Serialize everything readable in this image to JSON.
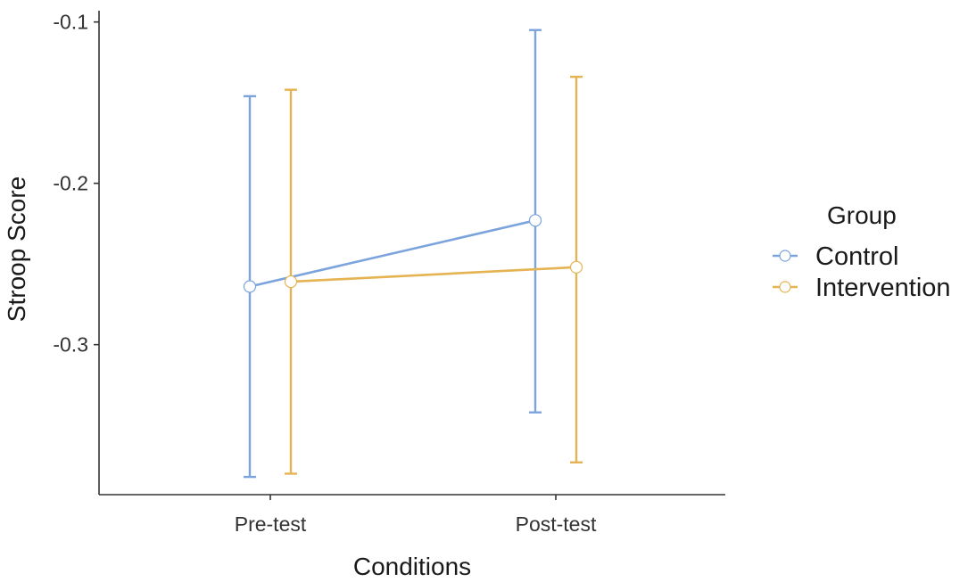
{
  "chart_data": {
    "type": "line",
    "xlabel": "Conditions",
    "ylabel": "Stroop Score",
    "categories": [
      "Pre-test",
      "Post-test"
    ],
    "ylim": [
      -0.393,
      -0.093
    ],
    "yticks": [
      -0.1,
      -0.2,
      -0.3
    ],
    "ytick_labels": [
      "-0.1",
      "-0.2",
      "-0.3"
    ],
    "grid": false,
    "legend": {
      "title": "Group",
      "position": "right"
    },
    "series": [
      {
        "name": "Control",
        "color": "#7BA3DC",
        "values": [
          -0.264,
          -0.223
        ],
        "error_low": [
          -0.382,
          -0.342
        ],
        "error_high": [
          -0.146,
          -0.105
        ]
      },
      {
        "name": "Intervention",
        "color": "#E5B352",
        "values": [
          -0.261,
          -0.252
        ],
        "error_low": [
          -0.38,
          -0.373
        ],
        "error_high": [
          -0.142,
          -0.134
        ]
      }
    ]
  }
}
